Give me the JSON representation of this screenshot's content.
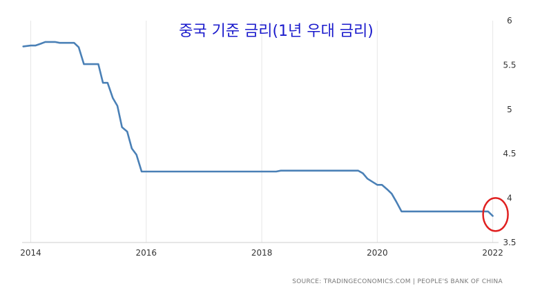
{
  "chart_data": {
    "type": "line",
    "title": "중국 기준 금리(1년 우대 금리)",
    "source": "SOURCE: TRADINGECONOMICS.COM | PEOPLE'S BANK OF CHINA",
    "xlim": [
      2013.85,
      2022.1
    ],
    "ylim": [
      3.5,
      6
    ],
    "y_axis_side": "right",
    "grid": "vertical",
    "x_ticks": [
      "2014",
      "2016",
      "2018",
      "2020",
      "2022"
    ],
    "y_ticks": [
      "3.5",
      "4",
      "4.5",
      "5",
      "5.5",
      "6"
    ],
    "annotation": "red circle at latest value",
    "line_color": "#4a80b6",
    "annotation_color": "#e02020",
    "series": [
      {
        "x": [
          2013.87,
          2014.0,
          2014.08,
          2014.17,
          2014.25,
          2014.33,
          2014.42,
          2014.5,
          2014.58,
          2014.67,
          2014.75,
          2014.83,
          2014.92,
          2015.0,
          2015.17,
          2015.25,
          2015.33,
          2015.42,
          2015.5,
          2015.58,
          2015.67,
          2015.75,
          2015.83,
          2015.92,
          2016.5,
          2017.0,
          2017.5,
          2018.0,
          2018.25,
          2018.33,
          2019.0,
          2019.58,
          2019.67,
          2019.75,
          2019.83,
          2020.0,
          2020.08,
          2020.17,
          2020.25,
          2020.33,
          2020.42,
          2021.0,
          2021.5,
          2021.83,
          2021.92,
          2022.0
        ],
        "y": [
          5.71,
          5.72,
          5.72,
          5.74,
          5.76,
          5.76,
          5.76,
          5.75,
          5.75,
          5.75,
          5.75,
          5.7,
          5.51,
          5.51,
          5.51,
          5.3,
          5.3,
          5.13,
          5.04,
          4.8,
          4.75,
          4.56,
          4.49,
          4.3,
          4.3,
          4.3,
          4.3,
          4.3,
          4.3,
          4.31,
          4.31,
          4.31,
          4.31,
          4.28,
          4.22,
          4.15,
          4.15,
          4.1,
          4.05,
          3.96,
          3.85,
          3.85,
          3.85,
          3.85,
          3.85,
          3.8
        ]
      }
    ]
  }
}
